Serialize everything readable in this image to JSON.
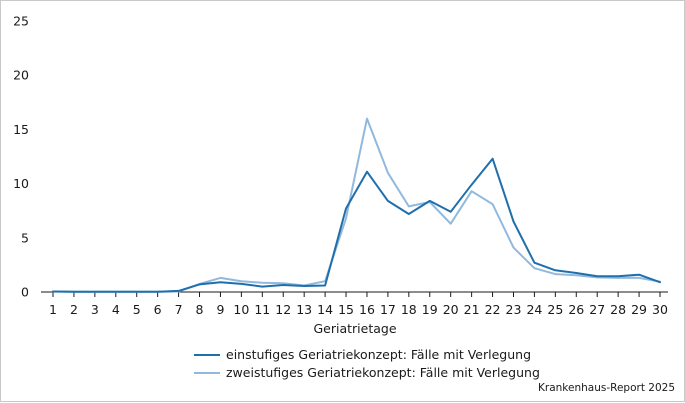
{
  "chart_data": {
    "type": "line",
    "title": "",
    "xlabel": "Geriatrietage",
    "ylabel": "",
    "x": [
      1,
      2,
      3,
      4,
      5,
      6,
      7,
      8,
      9,
      10,
      11,
      12,
      13,
      14,
      15,
      16,
      17,
      18,
      19,
      20,
      21,
      22,
      23,
      24,
      25,
      26,
      27,
      28,
      29,
      30
    ],
    "ylim": [
      0,
      25
    ],
    "yticks": [
      0,
      5,
      10,
      15,
      20,
      25
    ],
    "grid": false,
    "legend_position": "bottom-center",
    "series": [
      {
        "name": "einstufiges Geriatriekonzept: Fälle mit Verlegung",
        "color": "#1f6fad",
        "values": [
          0.05,
          0.02,
          0.02,
          0.02,
          0.03,
          0.02,
          0.1,
          0.7,
          0.9,
          0.75,
          0.5,
          0.65,
          0.55,
          0.6,
          7.7,
          11.1,
          8.4,
          7.2,
          8.4,
          7.4,
          9.9,
          12.3,
          6.5,
          2.7,
          2.0,
          1.75,
          1.45,
          1.45,
          1.6,
          0.9
        ]
      },
      {
        "name": "zweistufiges Geriatriekonzept: Fälle mit Verlegung",
        "color": "#90b9dd",
        "values": [
          0.05,
          0.02,
          0.02,
          0.02,
          0.03,
          0.02,
          0.05,
          0.75,
          1.3,
          1.0,
          0.85,
          0.8,
          0.6,
          1.0,
          6.8,
          16.0,
          11.0,
          7.9,
          8.3,
          6.3,
          9.3,
          8.1,
          4.1,
          2.2,
          1.65,
          1.55,
          1.35,
          1.3,
          1.3,
          0.95
        ]
      }
    ]
  },
  "source_note": "Krankenhaus-Report 2025"
}
